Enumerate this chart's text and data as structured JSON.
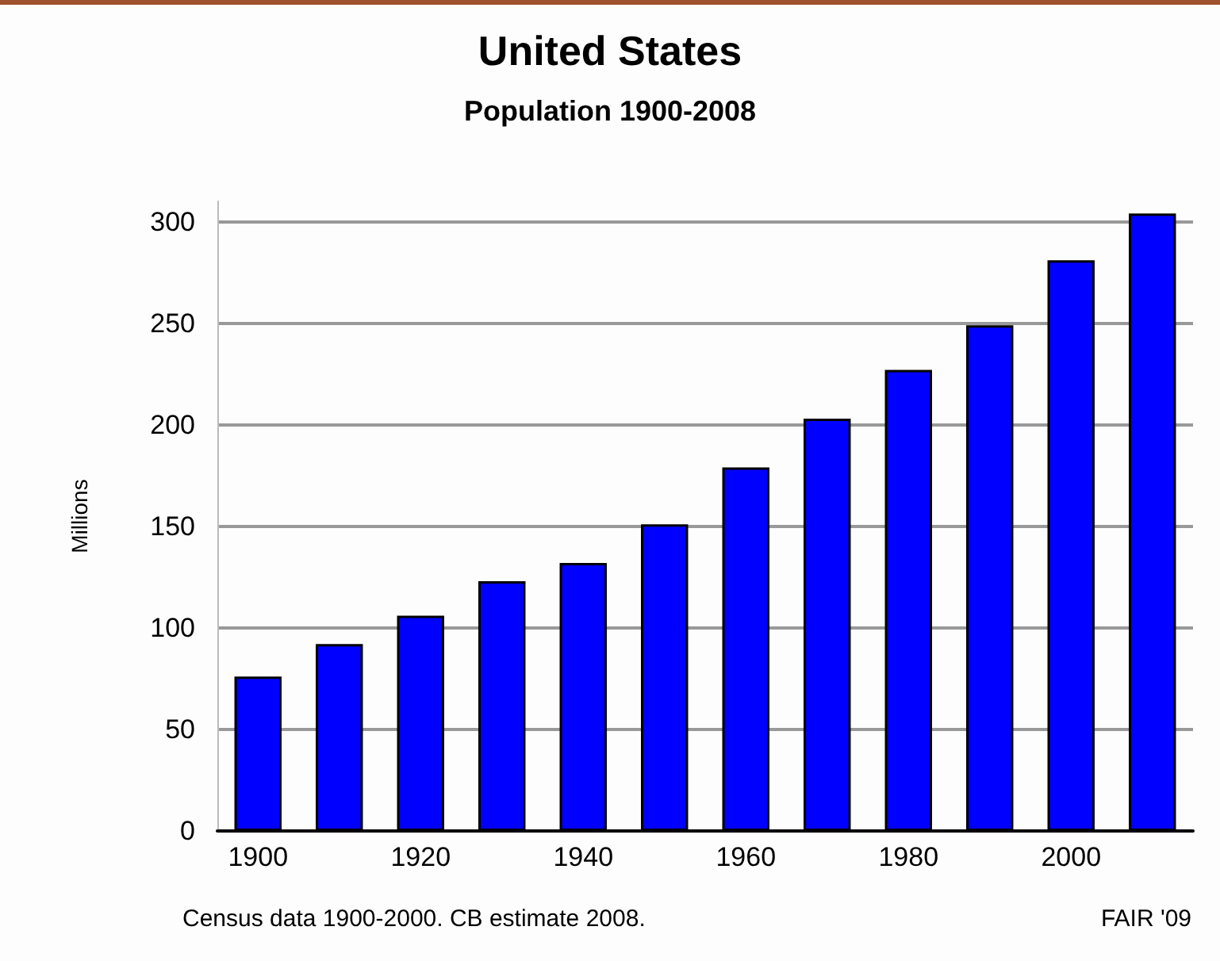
{
  "chart_data": {
    "type": "bar",
    "title": "United States",
    "subtitle": "Population 1900-2008",
    "ylabel": "Millions",
    "categories": [
      "1900",
      null,
      "1920",
      null,
      "1940",
      null,
      "1960",
      null,
      "1980",
      null,
      "2000",
      null
    ],
    "values": [
      76,
      92,
      106,
      123,
      132,
      151,
      179,
      203,
      227,
      249,
      281,
      304
    ],
    "color": "#0000ff",
    "ylim": [
      0,
      310
    ],
    "yticks": [
      0,
      50,
      100,
      150,
      200,
      250,
      300
    ],
    "grid": "y",
    "annotations": [
      "Census data 1900-2000. CB estimate 2008.",
      "FAIR '09"
    ]
  }
}
